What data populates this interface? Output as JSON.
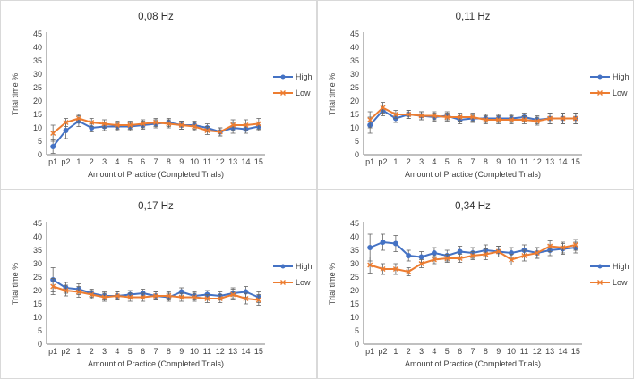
{
  "colors": {
    "high": "#4472C4",
    "low": "#ED7D31",
    "axis": "#595959",
    "grid": "#bfbfbf",
    "text": "#404040"
  },
  "chart_data": [
    {
      "type": "line",
      "title": "0,08 Hz",
      "xlabel": "Amount of Practice (Completed Trials)",
      "ylabel": "Trial time %",
      "ylim": [
        0,
        45
      ],
      "yticks": [
        0,
        5,
        10,
        15,
        20,
        25,
        30,
        35,
        40,
        45
      ],
      "grid": false,
      "legend": "right",
      "categories": [
        "p1",
        "p2",
        "1",
        "2",
        "3",
        "4",
        "5",
        "6",
        "7",
        "8",
        "9",
        "10",
        "11",
        "12",
        "13",
        "14",
        "15"
      ],
      "series": [
        {
          "name": "High",
          "marker": "circle",
          "values": [
            3,
            9,
            12.5,
            10,
            10.5,
            10.5,
            10.5,
            11,
            11.5,
            12,
            11,
            11,
            10,
            8.5,
            10,
            9.5,
            10.5
          ],
          "errors": [
            2.5,
            3,
            2,
            1.5,
            1.5,
            1.5,
            1.5,
            1.5,
            1.5,
            1.5,
            1.5,
            1.5,
            1.5,
            1.5,
            2,
            1.5,
            1.5
          ]
        },
        {
          "name": "Low",
          "marker": "cross",
          "values": [
            8,
            12,
            13.5,
            12,
            11.5,
            11,
            11,
            11.5,
            12,
            11.5,
            11,
            10.5,
            9,
            8.5,
            11,
            11,
            11.5
          ],
          "errors": [
            3,
            1.5,
            1.5,
            1.5,
            1.5,
            1.5,
            1.5,
            1.5,
            1.5,
            1.5,
            1.5,
            1.5,
            1.5,
            1.5,
            2,
            2,
            2
          ]
        }
      ]
    },
    {
      "type": "line",
      "title": "0,11 Hz",
      "xlabel": "Amount of Practice (Completed Trials)",
      "ylabel": "Trial time %",
      "ylim": [
        0,
        45
      ],
      "yticks": [
        0,
        5,
        10,
        15,
        20,
        25,
        30,
        35,
        40,
        45
      ],
      "grid": false,
      "legend": "right",
      "categories": [
        "p1",
        "p2",
        "1",
        "2",
        "3",
        "4",
        "5",
        "6",
        "7",
        "8",
        "9",
        "10",
        "11",
        "12",
        "13",
        "14",
        "15"
      ],
      "series": [
        {
          "name": "High",
          "marker": "circle",
          "values": [
            11,
            16.5,
            13.5,
            15,
            14.5,
            14,
            14.5,
            13,
            13.5,
            13.5,
            13.5,
            13.5,
            14,
            13,
            13.5,
            13.5,
            13.5
          ],
          "errors": [
            3,
            2,
            1.5,
            1.5,
            1.5,
            1.5,
            1.5,
            1.5,
            1.5,
            1.5,
            1.5,
            1.5,
            1.5,
            1.5,
            2,
            2,
            2
          ]
        },
        {
          "name": "Low",
          "marker": "cross",
          "values": [
            13,
            17.5,
            15,
            15,
            14.5,
            14.5,
            14,
            14,
            14,
            13,
            13,
            13,
            13,
            12.5,
            13.5,
            13.5,
            13.5
          ],
          "errors": [
            3,
            2,
            1.5,
            1.5,
            1.5,
            1.5,
            1.5,
            1.5,
            1.5,
            1.5,
            1.5,
            1.5,
            1.5,
            1.5,
            2,
            2,
            2
          ]
        }
      ]
    },
    {
      "type": "line",
      "title": "0,17 Hz",
      "xlabel": "Amount of Practice (Completed Trials)",
      "ylabel": "Trial time %",
      "ylim": [
        0,
        45
      ],
      "yticks": [
        0,
        5,
        10,
        15,
        20,
        25,
        30,
        35,
        40,
        45
      ],
      "grid": false,
      "legend": "right",
      "categories": [
        "p1",
        "p2",
        "1",
        "2",
        "3",
        "4",
        "5",
        "6",
        "7",
        "8",
        "9",
        "10",
        "11",
        "12",
        "13",
        "14",
        "15"
      ],
      "series": [
        {
          "name": "High",
          "marker": "circle",
          "values": [
            24,
            21,
            20.5,
            19,
            18,
            18,
            18.5,
            19,
            18,
            17.5,
            19.5,
            18,
            18.5,
            18,
            19,
            19.5,
            17.5
          ],
          "errors": [
            4.5,
            2,
            2,
            1.5,
            1.5,
            1.5,
            1.5,
            1.5,
            1.5,
            1.5,
            1.5,
            1.5,
            1.5,
            1.5,
            2,
            2,
            2
          ]
        },
        {
          "name": "Low",
          "marker": "cross",
          "values": [
            21.5,
            20,
            19.5,
            18.5,
            17.5,
            18,
            17.5,
            17.5,
            18,
            18,
            17.5,
            17.5,
            17,
            17,
            18.5,
            17,
            16.5
          ],
          "errors": [
            3,
            2,
            2,
            1.5,
            1.5,
            1.5,
            1.5,
            1.5,
            1.5,
            1.5,
            1.5,
            1.5,
            1.5,
            1.5,
            2,
            2,
            2
          ]
        }
      ]
    },
    {
      "type": "line",
      "title": "0,34 Hz",
      "xlabel": "Amount of Practice (Completed Trials)",
      "ylabel": "Trial time %",
      "ylim": [
        0,
        45
      ],
      "yticks": [
        0,
        5,
        10,
        15,
        20,
        25,
        30,
        35,
        40,
        45
      ],
      "grid": false,
      "legend": "right",
      "categories": [
        "p1",
        "p2",
        "1",
        "2",
        "3",
        "4",
        "5",
        "6",
        "7",
        "8",
        "9",
        "10",
        "11",
        "12",
        "13",
        "14",
        "15"
      ],
      "series": [
        {
          "name": "High",
          "marker": "circle",
          "values": [
            36,
            38,
            37.5,
            33,
            32.5,
            34,
            33,
            34.5,
            34,
            35,
            34.5,
            34,
            35,
            34,
            35,
            35.5,
            36
          ],
          "errors": [
            5,
            3,
            3,
            2,
            2,
            2,
            2,
            2,
            2,
            2,
            2,
            2,
            2,
            2,
            2,
            2,
            2
          ]
        },
        {
          "name": "Low",
          "marker": "cross",
          "values": [
            29.5,
            28,
            28,
            27,
            30,
            31.5,
            32,
            32,
            33,
            33.5,
            34.5,
            31.5,
            33,
            34,
            36.5,
            36,
            37
          ],
          "errors": [
            3,
            2,
            2,
            1.5,
            1.5,
            1.5,
            1.5,
            1.5,
            1.5,
            2,
            2,
            2,
            2,
            2,
            2,
            2,
            2
          ]
        }
      ]
    }
  ]
}
